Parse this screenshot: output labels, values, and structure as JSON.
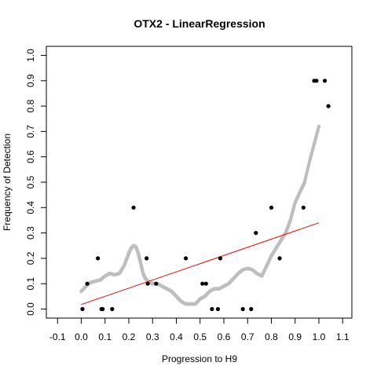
{
  "chart_data": {
    "type": "scatter",
    "title": "OTX2 - LinearRegression",
    "xlabel": "Progression to H9",
    "ylabel": "Frequency of Detection",
    "xlim": [
      -0.1,
      1.1
    ],
    "ylim": [
      0.0,
      1.0
    ],
    "xticks": [
      -0.1,
      0.0,
      0.1,
      0.2,
      0.3,
      0.4,
      0.5,
      0.6,
      0.7,
      0.8,
      0.9,
      1.0,
      1.1
    ],
    "xtick_labels": [
      "-0.1",
      "0.0",
      "0.1",
      "0.2",
      "0.3",
      "0.4",
      "0.5",
      "0.6",
      "0.7",
      "0.8",
      "0.9",
      "1.0",
      "1.1"
    ],
    "yticks": [
      0.0,
      0.1,
      0.2,
      0.3,
      0.4,
      0.5,
      0.6,
      0.7,
      0.8,
      0.9,
      1.0
    ],
    "ytick_labels": [
      "0.0",
      "0.1",
      "0.2",
      "0.3",
      "0.4",
      "0.5",
      "0.6",
      "0.7",
      "0.8",
      "0.9",
      "1.0"
    ],
    "grid": false,
    "colors": {
      "observed": "#000000",
      "smoothed": "#bebebe",
      "regression": "#ff0000"
    },
    "observed_points": {
      "x": [
        0.005,
        0.025,
        0.07,
        0.085,
        0.09,
        0.13,
        0.22,
        0.275,
        0.28,
        0.315,
        0.44,
        0.51,
        0.525,
        0.55,
        0.575,
        0.585,
        0.68,
        0.715,
        0.735,
        0.8,
        0.835,
        0.935,
        0.98,
        0.99,
        1.025,
        1.04
      ],
      "y": [
        0.0,
        0.1,
        0.2,
        0.0,
        0.0,
        0.0,
        0.4,
        0.2,
        0.1,
        0.1,
        0.2,
        0.1,
        0.1,
        0.0,
        0.0,
        0.2,
        0.0,
        0.0,
        0.3,
        0.4,
        0.2,
        0.4,
        0.9,
        0.9,
        0.9,
        0.8
      ]
    },
    "smoothed_curve": {
      "x": [
        0.0,
        0.02,
        0.04,
        0.06,
        0.08,
        0.1,
        0.12,
        0.14,
        0.16,
        0.18,
        0.2,
        0.21,
        0.22,
        0.23,
        0.24,
        0.25,
        0.26,
        0.27,
        0.28,
        0.3,
        0.32,
        0.34,
        0.36,
        0.38,
        0.4,
        0.42,
        0.44,
        0.46,
        0.48,
        0.5,
        0.52,
        0.54,
        0.56,
        0.58,
        0.6,
        0.62,
        0.64,
        0.66,
        0.68,
        0.7,
        0.72,
        0.74,
        0.76,
        0.78,
        0.8,
        0.82,
        0.84,
        0.86,
        0.88,
        0.9,
        0.92,
        0.94,
        0.96,
        0.98,
        1.0
      ],
      "y": [
        0.07,
        0.09,
        0.105,
        0.11,
        0.115,
        0.13,
        0.14,
        0.135,
        0.14,
        0.17,
        0.22,
        0.24,
        0.25,
        0.245,
        0.22,
        0.18,
        0.14,
        0.12,
        0.11,
        0.1,
        0.1,
        0.09,
        0.08,
        0.07,
        0.05,
        0.03,
        0.02,
        0.02,
        0.02,
        0.04,
        0.05,
        0.07,
        0.08,
        0.08,
        0.09,
        0.1,
        0.12,
        0.14,
        0.155,
        0.16,
        0.155,
        0.14,
        0.13,
        0.17,
        0.21,
        0.24,
        0.27,
        0.3,
        0.35,
        0.42,
        0.46,
        0.5,
        0.58,
        0.65,
        0.72
      ]
    },
    "regression_line": {
      "x": [
        0.0,
        1.0
      ],
      "y": [
        0.018,
        0.34
      ]
    }
  }
}
